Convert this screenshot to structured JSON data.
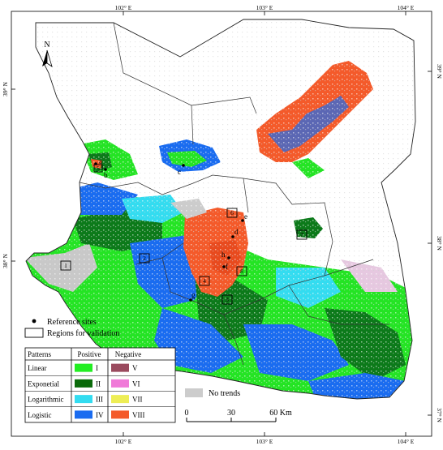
{
  "graticule": {
    "top_labels": [
      "102° E",
      "103° E",
      "104° E"
    ],
    "bottom_labels": [
      "102° E",
      "103° E",
      "104° E"
    ],
    "left_labels": [
      "39° N",
      "38° N"
    ],
    "right_labels": [
      "39° N",
      "38° N",
      "37° N"
    ]
  },
  "north_arrow": {
    "letter": "N"
  },
  "site_labels": [
    "a",
    "b",
    "c",
    "d",
    "e",
    "f",
    "g",
    "h"
  ],
  "region_numbers": [
    "1",
    "2",
    "3",
    "4",
    "5",
    "6",
    "7",
    "8"
  ],
  "legend": {
    "reference_sites": "Reference sites",
    "regions": "Regions for validation",
    "table": {
      "header_patterns": "Patterns",
      "header_positive": "Positive",
      "header_negative": "Negative",
      "rows": [
        {
          "name": "Linear",
          "pos_label": "I",
          "pos_color": "#22ee22",
          "neg_label": "V",
          "neg_color": "#9a4a5e"
        },
        {
          "name": "Exponetial",
          "pos_label": "II",
          "pos_color": "#0a6a0a",
          "neg_label": "VI",
          "neg_color": "#f07ad8"
        },
        {
          "name": "Logarithmic",
          "pos_label": "III",
          "pos_color": "#33dcf0",
          "neg_label": "VII",
          "neg_color": "#eeee55"
        },
        {
          "name": "Logistic",
          "pos_label": "IV",
          "pos_color": "#1a6cf0",
          "neg_label": "VIII",
          "neg_color": "#f45a2a"
        }
      ]
    },
    "no_trends": {
      "label": "No trends",
      "color": "#cccccc"
    }
  },
  "scale_bar": {
    "labels": [
      "0",
      "30",
      "60 Km"
    ]
  }
}
